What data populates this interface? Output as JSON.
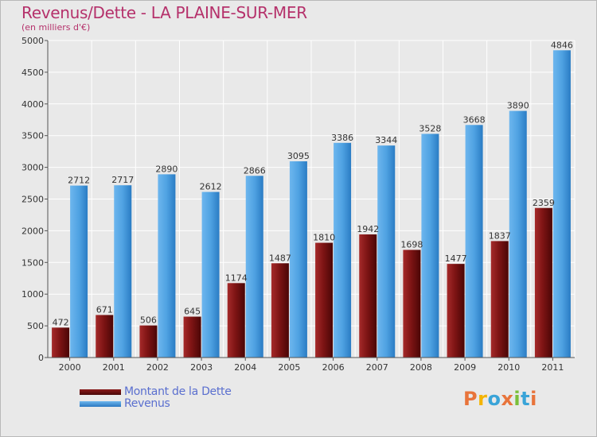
{
  "header": {
    "title": "Revenus/Dette - LA PLAINE-SUR-MER",
    "subtitle": "(en milliers d'€)"
  },
  "legend": {
    "dette_label": "Montant de la Dette",
    "revenus_label": "Revenus"
  },
  "logo": {
    "text": "Proxiti"
  },
  "colors": {
    "dette": "#8b1a1a",
    "dette_dark": "#4a0808",
    "revenus": "#5aa9e6",
    "revenus_dark": "#2a78c0",
    "title": "#b5316b",
    "legend_text": "#5a6fcf"
  },
  "chart_data": {
    "type": "bar",
    "categories": [
      "2000",
      "2001",
      "2002",
      "2003",
      "2004",
      "2005",
      "2006",
      "2007",
      "2008",
      "2009",
      "2010",
      "2011"
    ],
    "series": [
      {
        "name": "Montant de la Dette",
        "values": [
          472,
          671,
          506,
          645,
          1174,
          1487,
          1810,
          1942,
          1698,
          1477,
          1837,
          2359
        ]
      },
      {
        "name": "Revenus",
        "values": [
          2712,
          2717,
          2890,
          2612,
          2866,
          3095,
          3386,
          3344,
          3528,
          3668,
          3890,
          4846
        ]
      }
    ],
    "yticks": [
      0,
      500,
      1000,
      1500,
      2000,
      2500,
      3000,
      3500,
      4000,
      4500,
      5000
    ],
    "ylim": [
      0,
      5000
    ],
    "grid": true,
    "legend_position": "bottom-left"
  }
}
